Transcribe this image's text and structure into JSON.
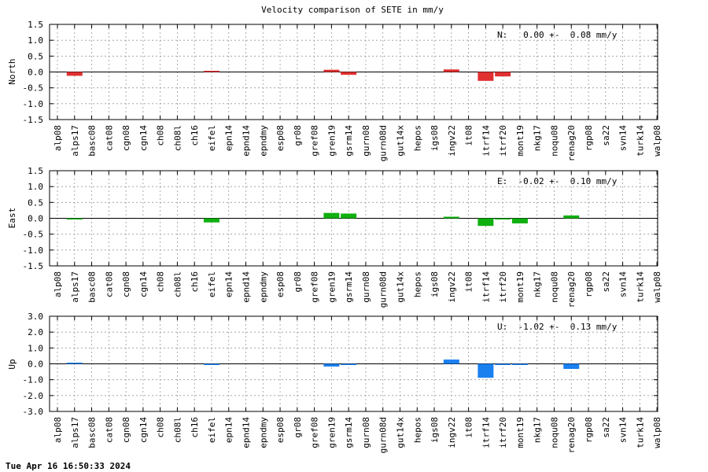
{
  "title": "Velocity comparison of SETE in mm/y",
  "timestamp": "Tue Apr 16 16:50:33 2024",
  "chart_data": [
    {
      "type": "bar",
      "ylabel": "North",
      "color": "#e03030",
      "ylim": [
        -1.5,
        1.5
      ],
      "yticks": [
        1.5,
        1.0,
        0.5,
        0.0,
        -0.5,
        -1.0,
        -1.5
      ],
      "ytick_labels": [
        "1.5",
        "1.0",
        "0.5",
        "0.0",
        "-0.5",
        "-1.0",
        "-1.5"
      ],
      "grid": true,
      "annotation": "N:   0.00 +-  0.08 mm/y",
      "categories": [
        "alp08",
        "alps17",
        "basc08",
        "cat08",
        "cgn08",
        "cgn14",
        "ch08",
        "ch08l",
        "ch16",
        "eifel",
        "epn14",
        "epnd14",
        "epndmy",
        "esp08",
        "gr08",
        "gref08",
        "gren19",
        "gsrm14",
        "gurn08",
        "gurn08d",
        "gut14x",
        "hepos",
        "igs08",
        "ingv22",
        "it08",
        "itrf14",
        "itrf20",
        "mont19",
        "nkg17",
        "noqu08",
        "renag20",
        "rgp08",
        "sa22",
        "svn14",
        "turk14",
        "walp08"
      ],
      "values": [
        0,
        -0.12,
        0,
        0,
        0,
        0,
        0,
        0,
        0,
        0.02,
        0,
        0,
        0,
        0,
        0,
        0,
        0.07,
        -0.09,
        0,
        0,
        0,
        0,
        0,
        0.08,
        0,
        -0.28,
        -0.14,
        0,
        0,
        0,
        0,
        0,
        0,
        0,
        0,
        0
      ]
    },
    {
      "type": "bar",
      "ylabel": "East",
      "color": "#10b010",
      "ylim": [
        -1.5,
        1.5
      ],
      "yticks": [
        1.5,
        1.0,
        0.5,
        0.0,
        -0.5,
        -1.0,
        -1.5
      ],
      "ytick_labels": [
        "1.5",
        "1.0",
        "0.5",
        "0.0",
        "-0.5",
        "-1.0",
        "-1.5"
      ],
      "grid": true,
      "annotation": "E:  -0.02 +-  0.10 mm/y",
      "categories": [
        "alp08",
        "alps17",
        "basc08",
        "cat08",
        "cgn08",
        "cgn14",
        "ch08",
        "ch08l",
        "ch16",
        "eifel",
        "epn14",
        "epnd14",
        "epndmy",
        "esp08",
        "gr08",
        "gref08",
        "gren19",
        "gsrm14",
        "gurn08",
        "gurn08d",
        "gut14x",
        "hepos",
        "igs08",
        "ingv22",
        "it08",
        "itrf14",
        "itrf20",
        "mont19",
        "nkg17",
        "noqu08",
        "renag20",
        "rgp08",
        "sa22",
        "svn14",
        "turk14",
        "walp08"
      ],
      "values": [
        0,
        -0.03,
        0,
        0,
        0,
        0,
        0,
        0,
        0,
        -0.13,
        0,
        0,
        0,
        0,
        0,
        0,
        0.17,
        0.15,
        0,
        0,
        0,
        0,
        0,
        0.05,
        0,
        -0.24,
        -0.02,
        -0.16,
        0,
        0,
        0.09,
        0,
        0,
        0,
        0,
        0
      ]
    },
    {
      "type": "bar",
      "ylabel": "Up",
      "color": "#1a80f0",
      "ylim": [
        -3.0,
        3.0
      ],
      "yticks": [
        3.0,
        2.0,
        1.0,
        0.0,
        -1.0,
        -2.0,
        -3.0
      ],
      "ytick_labels": [
        "3.0",
        "2.0",
        "1.0",
        "0.0",
        "-1.0",
        "-2.0",
        "-3.0"
      ],
      "grid": true,
      "annotation": "U:  -1.02 +-  0.13 mm/y",
      "categories": [
        "alp08",
        "alps17",
        "basc08",
        "cat08",
        "cgn08",
        "cgn14",
        "ch08",
        "ch08l",
        "ch16",
        "eifel",
        "epn14",
        "epnd14",
        "epndmy",
        "esp08",
        "gr08",
        "gref08",
        "gren19",
        "gsrm14",
        "gurn08",
        "gurn08d",
        "gut14x",
        "hepos",
        "igs08",
        "ingv22",
        "it08",
        "itrf14",
        "itrf20",
        "mont19",
        "nkg17",
        "noqu08",
        "renag20",
        "rgp08",
        "sa22",
        "svn14",
        "turk14",
        "walp08"
      ],
      "values": [
        0,
        0.04,
        0,
        0,
        0,
        0,
        0,
        0,
        0,
        -0.07,
        0,
        0,
        0,
        0,
        0,
        0,
        -0.17,
        -0.03,
        0,
        0,
        0,
        0,
        0,
        0.27,
        0,
        -0.88,
        -0.03,
        -0.06,
        0,
        0,
        -0.32,
        0,
        0,
        0,
        0,
        0
      ]
    }
  ]
}
